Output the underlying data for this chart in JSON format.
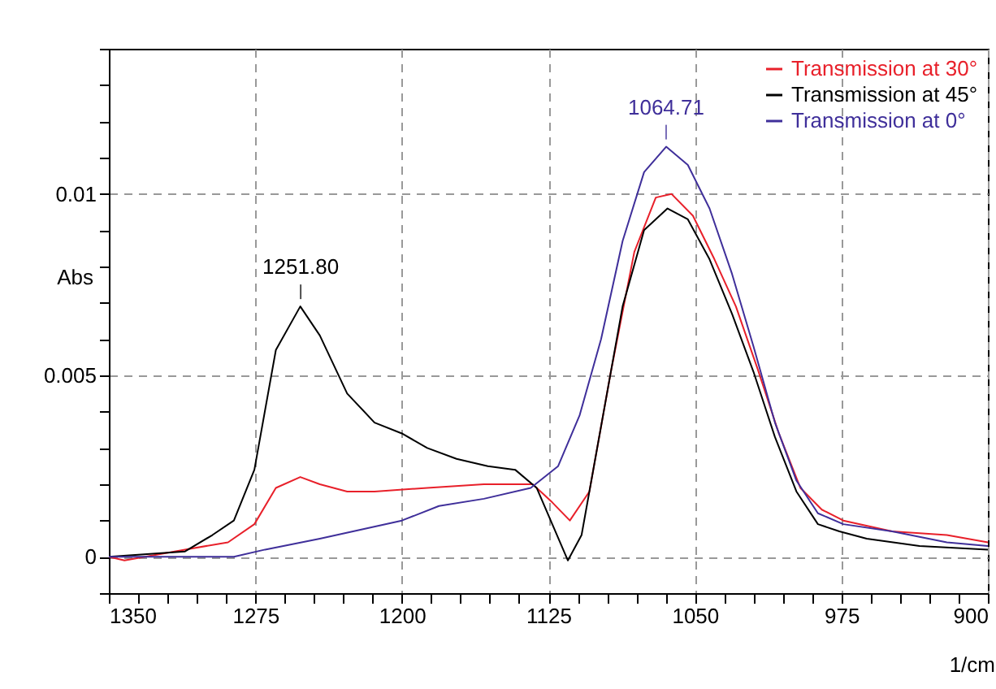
{
  "chart_data": {
    "type": "line",
    "xlabel": "1/cm",
    "ylabel": "Abs",
    "xlim": [
      1350,
      900
    ],
    "ylim": [
      -0.001,
      0.014
    ],
    "xticks": [
      1350,
      {
        "value": 1335,
        "label": null
      },
      {
        "value": 1320,
        "label": null
      },
      {
        "value": 1305,
        "label": null
      },
      {
        "value": 1290,
        "label": null
      },
      1275,
      {
        "value": 1260,
        "label": null
      },
      {
        "value": 1245,
        "label": null
      },
      {
        "value": 1230,
        "label": null
      },
      {
        "value": 1215,
        "label": null
      },
      1200,
      {
        "value": 1185,
        "label": null
      },
      {
        "value": 1170,
        "label": null
      },
      {
        "value": 1155,
        "label": null
      },
      {
        "value": 1140,
        "label": null
      },
      1125,
      {
        "value": 1110,
        "label": null
      },
      {
        "value": 1095,
        "label": null
      },
      {
        "value": 1080,
        "label": null
      },
      {
        "value": 1065,
        "label": null
      },
      1050,
      {
        "value": 1035,
        "label": null
      },
      {
        "value": 1020,
        "label": null
      },
      {
        "value": 1005,
        "label": null
      },
      {
        "value": 990,
        "label": null
      },
      975,
      {
        "value": 960,
        "label": null
      },
      {
        "value": 945,
        "label": null
      },
      {
        "value": 930,
        "label": null
      },
      {
        "value": 915,
        "label": null
      },
      900
    ],
    "yticks": [
      {
        "value": -0.001,
        "label": null
      },
      0,
      {
        "value": 0.001,
        "label": null
      },
      {
        "value": 0.002,
        "label": null
      },
      {
        "value": 0.003,
        "label": null
      },
      {
        "value": 0.004,
        "label": null
      },
      0.005,
      {
        "value": 0.006,
        "label": null
      },
      {
        "value": 0.007,
        "label": null
      },
      {
        "value": 0.008,
        "label": null
      },
      {
        "value": 0.009,
        "label": null
      },
      0.01,
      {
        "value": 0.011,
        "label": null
      },
      {
        "value": 0.012,
        "label": null
      },
      {
        "value": 0.013,
        "label": null
      },
      {
        "value": 0.014,
        "label": null
      }
    ],
    "grid": true,
    "legend": "top right",
    "annotations": [
      {
        "text": "1251.80",
        "x": 1251.8,
        "y": 0.0069
      },
      {
        "text": "1064.71",
        "x": 1064.71,
        "y": 0.0113
      }
    ],
    "series": [
      {
        "name": "Transmission at 30°",
        "color": "#e8202a",
        "x": [
          1350,
          1342,
          1311,
          1289,
          1275.5,
          1264.5,
          1252,
          1242,
          1228,
          1214,
          1187,
          1158,
          1133,
          1123,
          1114,
          1104,
          1093,
          1081,
          1070,
          1062,
          1051,
          1040,
          1029,
          1018,
          1007,
          996,
          985,
          974,
          949,
          921,
          900
        ],
        "values": [
          0,
          -0.0001,
          0.0002,
          0.0004,
          0.0009,
          0.0019,
          0.0022,
          0.002,
          0.0018,
          0.0018,
          0.0019,
          0.002,
          0.002,
          0.0015,
          0.001,
          0.0018,
          0.0051,
          0.0084,
          0.0099,
          0.01,
          0.0094,
          0.0082,
          0.0069,
          0.0052,
          0.0034,
          0.0019,
          0.0013,
          0.001,
          0.0007,
          0.0006,
          0.0004
        ]
      },
      {
        "name": "Transmission at 45°",
        "color": "#000000",
        "x": [
          1350,
          1311,
          1297,
          1286,
          1275.5,
          1264.5,
          1252,
          1242,
          1228,
          1214,
          1200,
          1187,
          1172,
          1156,
          1142,
          1131,
          1123,
          1115,
          1108,
          1098,
          1087,
          1076,
          1064,
          1053.6,
          1042.5,
          1031,
          1020,
          1009,
          998,
          987,
          976,
          962,
          935,
          900
        ],
        "values": [
          0,
          0.00015,
          0.0006,
          0.001,
          0.0024,
          0.0057,
          0.0069,
          0.0061,
          0.0045,
          0.0037,
          0.0034,
          0.003,
          0.0027,
          0.0025,
          0.0024,
          0.0019,
          0.0009,
          -0.0001,
          0.0006,
          0.0036,
          0.0069,
          0.009,
          0.0096,
          0.0093,
          0.0082,
          0.0067,
          0.0051,
          0.0033,
          0.0018,
          0.0009,
          0.0007,
          0.0005,
          0.0003,
          0.0002
        ]
      },
      {
        "name": "Transmission at 0°",
        "color": "#3f2f9a",
        "x": [
          1350,
          1286,
          1270,
          1242,
          1225,
          1200,
          1181,
          1158,
          1134,
          1120,
          1109,
          1098,
          1087,
          1076,
          1064.7,
          1053.6,
          1042.5,
          1031,
          1020,
          1009,
          998,
          987,
          974,
          949,
          921,
          900
        ],
        "values": [
          0,
          0,
          0.0002,
          0.0005,
          0.0007,
          0.001,
          0.0014,
          0.0016,
          0.0019,
          0.0025,
          0.0039,
          0.006,
          0.0087,
          0.0106,
          0.0113,
          0.0108,
          0.0096,
          0.0078,
          0.0058,
          0.0037,
          0.0021,
          0.0012,
          0.0009,
          0.0007,
          0.0004,
          0.0003
        ]
      }
    ]
  }
}
